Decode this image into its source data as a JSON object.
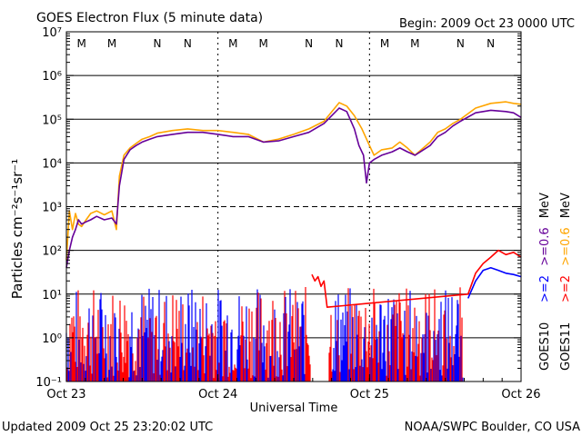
{
  "chart_data": {
    "type": "line",
    "title": "GOES Electron Flux (5 minute data)",
    "begin_label": "Begin: 2009 Oct 23 0000 UTC",
    "ylabel": "Particles cm⁻²s⁻¹sr⁻¹",
    "xlabel": "Universal Time",
    "footer_left": "Updated 2009 Oct 25 23:20:02 UTC",
    "footer_right": "NOAA/SWPC Boulder, CO USA",
    "y_scale": "log",
    "ylim": [
      0.1,
      10000000
    ],
    "y_ticks": [
      {
        "label": "10⁻¹",
        "value": 0.1
      },
      {
        "label": "10⁰",
        "value": 1
      },
      {
        "label": "10¹",
        "value": 10
      },
      {
        "label": "10²",
        "value": 100
      },
      {
        "label": "10³",
        "value": 1000
      },
      {
        "label": "10⁴",
        "value": 10000
      },
      {
        "label": "10⁵",
        "value": 100000
      },
      {
        "label": "10⁶",
        "value": 1000000
      },
      {
        "label": "10⁷",
        "value": 10000000
      }
    ],
    "xlim": [
      "2009-10-23",
      "2009-10-26"
    ],
    "x_ticks": [
      {
        "label": "Oct 23",
        "day": 0
      },
      {
        "label": "Oct 24",
        "day": 1
      },
      {
        "label": "Oct 25",
        "day": 2
      },
      {
        "label": "Oct 26",
        "day": 3
      }
    ],
    "gridlines": [
      {
        "value": 1,
        "style": "solid"
      },
      {
        "value": 10,
        "style": "solid"
      },
      {
        "value": 100,
        "style": "solid"
      },
      {
        "value": 1000,
        "style": "dashed"
      },
      {
        "value": 10000,
        "style": "solid"
      },
      {
        "value": 100000,
        "style": "solid"
      },
      {
        "value": 1000000,
        "style": "solid"
      }
    ],
    "noon_midnight_markers": [
      {
        "label": "M",
        "day": 0.1,
        "color": "#0000ff"
      },
      {
        "label": "M",
        "day": 0.3,
        "color": "#ff0000"
      },
      {
        "label": "N",
        "day": 0.6,
        "color": "#0000ff"
      },
      {
        "label": "N",
        "day": 0.8,
        "color": "#ff0000"
      },
      {
        "label": "M",
        "day": 1.1,
        "color": "#0000ff"
      },
      {
        "label": "M",
        "day": 1.3,
        "color": "#ff0000"
      },
      {
        "label": "N",
        "day": 1.6,
        "color": "#0000ff"
      },
      {
        "label": "N",
        "day": 1.8,
        "color": "#ff0000"
      },
      {
        "label": "M",
        "day": 2.1,
        "color": "#0000ff"
      },
      {
        "label": "M",
        "day": 2.3,
        "color": "#ff0000"
      },
      {
        "label": "N",
        "day": 2.6,
        "color": "#0000ff"
      },
      {
        "label": "N",
        "day": 2.8,
        "color": "#ff0000"
      }
    ],
    "legend": {
      "goes10": "GOES10",
      "goes11": "GOES11",
      "low_labels": [
        {
          "text": ">=2",
          "color": "#0000ff"
        },
        {
          "text": ">=0.6",
          "color": "#660099"
        }
      ],
      "high_labels": [
        {
          "text": ">=2",
          "color": "#ff0000"
        },
        {
          "text": ">=0.6",
          "color": "#ffa500"
        }
      ],
      "unit": "MeV"
    },
    "series": [
      {
        "name": ">=0.6 MeV",
        "color": "#ffa500",
        "x": [
          0.0,
          0.02,
          0.04,
          0.06,
          0.08,
          0.1,
          0.13,
          0.16,
          0.2,
          0.25,
          0.3,
          0.33,
          0.35,
          0.38,
          0.42,
          0.46,
          0.5,
          0.55,
          0.6,
          0.7,
          0.8,
          0.9,
          1.0,
          1.1,
          1.2,
          1.3,
          1.4,
          1.5,
          1.6,
          1.7,
          1.8,
          1.85,
          1.9,
          1.95,
          2.0,
          2.03,
          2.08,
          2.15,
          2.2,
          2.25,
          2.3,
          2.4,
          2.45,
          2.5,
          2.55,
          2.6,
          2.7,
          2.8,
          2.9,
          2.95,
          3.0
        ],
        "y": [
          60,
          800,
          300,
          700,
          400,
          350,
          500,
          700,
          800,
          650,
          800,
          300,
          5000,
          15000,
          22000,
          28000,
          35000,
          40000,
          48000,
          55000,
          60000,
          55000,
          55000,
          50000,
          45000,
          30000,
          35000,
          45000,
          60000,
          90000,
          240000,
          200000,
          120000,
          60000,
          25000,
          15000,
          20000,
          22000,
          30000,
          22000,
          15000,
          30000,
          50000,
          60000,
          80000,
          100000,
          180000,
          230000,
          250000,
          230000,
          220000
        ]
      },
      {
        "name": ">=0.6 MeV",
        "color": "#660099",
        "x": [
          0.0,
          0.02,
          0.04,
          0.06,
          0.08,
          0.1,
          0.13,
          0.16,
          0.2,
          0.25,
          0.3,
          0.33,
          0.35,
          0.38,
          0.42,
          0.46,
          0.5,
          0.55,
          0.6,
          0.7,
          0.8,
          0.9,
          1.0,
          1.1,
          1.2,
          1.3,
          1.4,
          1.5,
          1.6,
          1.7,
          1.8,
          1.85,
          1.9,
          1.93,
          1.96,
          1.98,
          2.0,
          2.03,
          2.08,
          2.15,
          2.2,
          2.25,
          2.3,
          2.4,
          2.45,
          2.5,
          2.55,
          2.6,
          2.7,
          2.8,
          2.9,
          2.95,
          3.0
        ],
        "y": [
          40,
          100,
          200,
          300,
          500,
          400,
          450,
          500,
          600,
          500,
          550,
          400,
          3000,
          12000,
          20000,
          25000,
          30000,
          35000,
          40000,
          45000,
          50000,
          50000,
          45000,
          40000,
          40000,
          30000,
          32000,
          40000,
          50000,
          80000,
          180000,
          150000,
          60000,
          25000,
          15000,
          3500,
          10000,
          12000,
          15000,
          18000,
          22000,
          18000,
          15000,
          25000,
          40000,
          50000,
          70000,
          90000,
          140000,
          160000,
          150000,
          140000,
          110000
        ]
      },
      {
        "name": ">=2 MeV",
        "color": "#0000ff",
        "x": [
          2.65,
          2.7,
          2.75,
          2.8,
          2.85,
          2.9,
          2.95,
          3.0
        ],
        "y": [
          8,
          20,
          35,
          40,
          35,
          30,
          28,
          25
        ]
      },
      {
        "name": ">=2 MeV",
        "color": "#ff0000",
        "x": [
          1.62,
          1.64,
          1.66,
          1.68,
          1.7,
          1.72,
          2.65,
          2.7,
          2.75,
          2.8,
          2.85,
          2.9,
          2.95,
          3.0
        ],
        "y": [
          28,
          20,
          25,
          15,
          20,
          5,
          10,
          30,
          50,
          70,
          100,
          80,
          90,
          70
        ]
      }
    ]
  }
}
